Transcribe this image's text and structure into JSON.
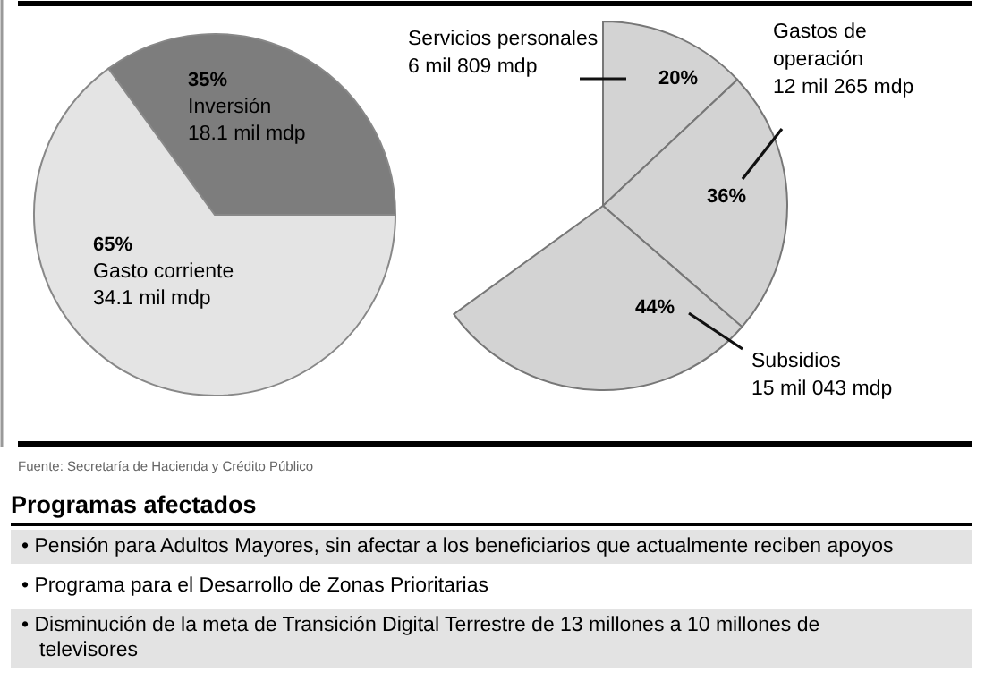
{
  "chart_data": [
    {
      "type": "pie",
      "categories": [
        "Inversión",
        "Gasto corriente"
      ],
      "values": [
        35,
        65
      ],
      "colors": [
        "#7d7d7d",
        "#e4e4e4"
      ],
      "value_labels": [
        "35%",
        "65%"
      ],
      "annotations": [
        {
          "text": "18.1 mil mdp",
          "x": "Inversión"
        },
        {
          "text": "34.1 mil mdp",
          "x": "Gasto corriente"
        }
      ]
    },
    {
      "type": "pie",
      "categories": [
        "Servicios personales",
        "Gastos de operación",
        "Subsidios"
      ],
      "values": [
        20,
        36,
        44
      ],
      "colors": [
        "#d3d3d3",
        "#d3d3d3",
        "#d3d3d3"
      ],
      "value_labels": [
        "20%",
        "36%",
        "44%"
      ],
      "annotations": [
        {
          "text": "6 mil 809 mdp",
          "x": "Servicios personales"
        },
        {
          "text": "12 mil 265 mdp",
          "x": "Gastos de operación"
        },
        {
          "text": "15 mil 043 mdp",
          "x": "Subsidios"
        },
        "Fuente: Secretaría de Hacienda y Crédito Público"
      ]
    },
    {
      "type": "other",
      "title": "Programas afectados",
      "annotations": [
        "• Pensión para Adultos Mayores, sin afectar a los beneficiarios que actualmente reciben apoyos",
        "• Programa para el Desarrollo de Zonas Prioritarias",
        "• Disminución de la meta de Transición Digital Terrestre de 13 millones a 10 millones de televisores"
      ]
    }
  ]
}
